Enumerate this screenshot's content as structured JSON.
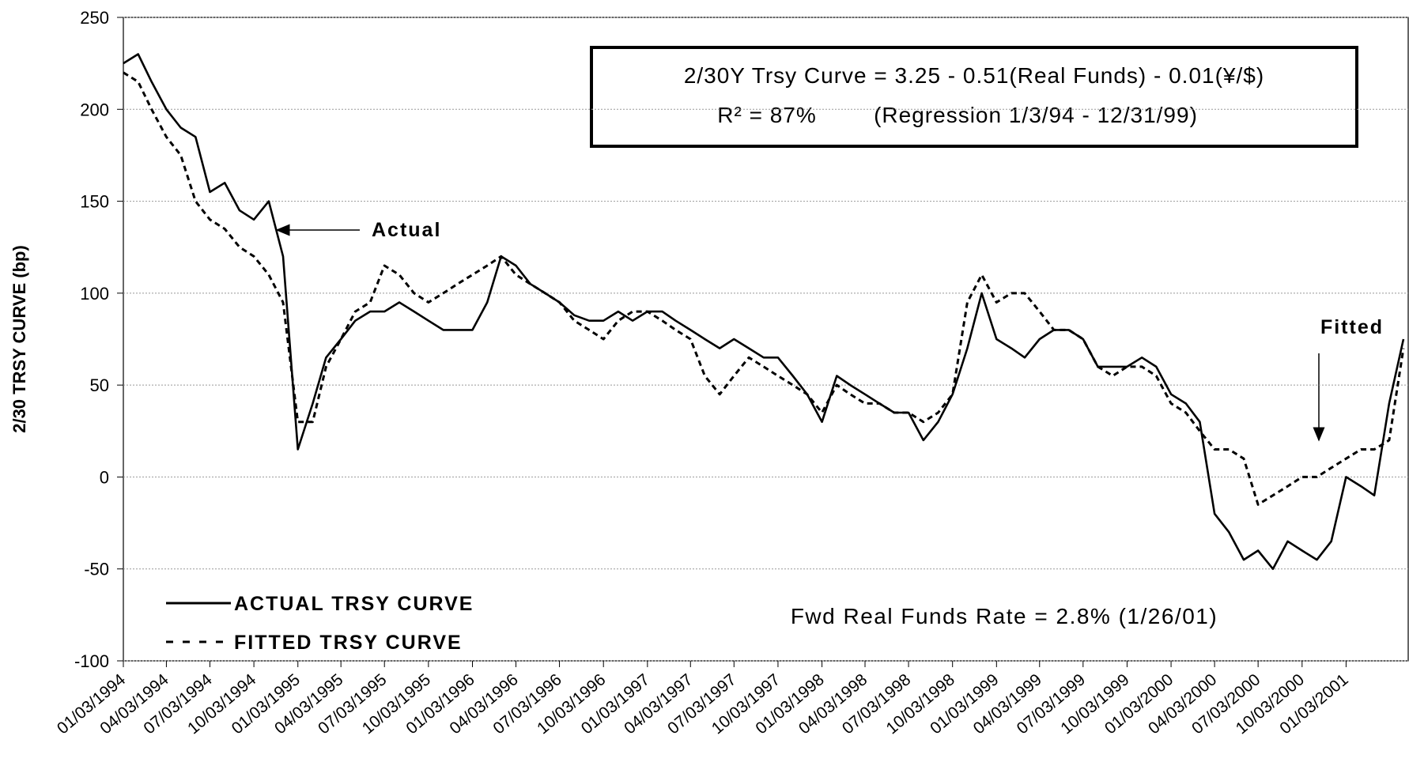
{
  "chart_data": {
    "type": "line",
    "ylabel": "2/30 TRSY CURVE (bp)",
    "ylim": [
      -100,
      250
    ],
    "yticks": [
      -100,
      -50,
      0,
      50,
      100,
      150,
      200,
      250
    ],
    "grid": true,
    "xlim": [
      "01/03/1994",
      "05/03/2001"
    ],
    "xticks": [
      "01/03/1994",
      "04/03/1994",
      "07/03/1994",
      "10/03/1994",
      "01/03/1995",
      "04/03/1995",
      "07/03/1995",
      "10/03/1995",
      "01/03/1996",
      "04/03/1996",
      "07/03/1996",
      "10/03/1996",
      "01/03/1997",
      "04/03/1997",
      "07/03/1997",
      "10/03/1997",
      "01/03/1998",
      "04/03/1998",
      "07/03/1998",
      "10/03/1998",
      "01/03/1999",
      "04/03/1999",
      "07/03/1999",
      "10/03/1999",
      "01/03/2000",
      "04/03/2000",
      "07/03/2000",
      "10/03/2000",
      "01/03/2001"
    ],
    "x": [
      "01/03/1994",
      "02/03/1994",
      "03/03/1994",
      "04/03/1994",
      "05/03/1994",
      "06/03/1994",
      "07/03/1994",
      "08/03/1994",
      "09/03/1994",
      "10/03/1994",
      "11/03/1994",
      "12/03/1994",
      "01/03/1995",
      "02/03/1995",
      "03/03/1995",
      "04/03/1995",
      "05/03/1995",
      "06/03/1995",
      "07/03/1995",
      "08/03/1995",
      "09/03/1995",
      "10/03/1995",
      "11/03/1995",
      "12/03/1995",
      "01/03/1996",
      "02/03/1996",
      "03/03/1996",
      "04/03/1996",
      "05/03/1996",
      "06/03/1996",
      "07/03/1996",
      "08/03/1996",
      "09/03/1996",
      "10/03/1996",
      "11/03/1996",
      "12/03/1996",
      "01/03/1997",
      "02/03/1997",
      "03/03/1997",
      "04/03/1997",
      "05/03/1997",
      "06/03/1997",
      "07/03/1997",
      "08/03/1997",
      "09/03/1997",
      "10/03/1997",
      "11/03/1997",
      "12/03/1997",
      "01/03/1998",
      "02/03/1998",
      "03/03/1998",
      "04/03/1998",
      "05/03/1998",
      "06/03/1998",
      "07/03/1998",
      "08/03/1998",
      "09/03/1998",
      "10/03/1998",
      "11/03/1998",
      "12/03/1998",
      "01/03/1999",
      "02/03/1999",
      "03/03/1999",
      "04/03/1999",
      "05/03/1999",
      "06/03/1999",
      "07/03/1999",
      "08/03/1999",
      "09/03/1999",
      "10/03/1999",
      "11/03/1999",
      "12/03/1999",
      "01/03/2000",
      "02/03/2000",
      "03/03/2000",
      "04/03/2000",
      "05/03/2000",
      "06/03/2000",
      "07/03/2000",
      "08/03/2000",
      "09/03/2000",
      "10/03/2000",
      "11/03/2000",
      "12/03/2000",
      "01/03/2001",
      "02/03/2001",
      "03/03/2001",
      "04/03/2001",
      "05/03/2001"
    ],
    "series": [
      {
        "name": "ACTUAL TRSY CURVE",
        "color": "#000000",
        "dash": false,
        "values": [
          225,
          230,
          215,
          200,
          190,
          185,
          155,
          160,
          145,
          140,
          150,
          120,
          15,
          40,
          65,
          75,
          85,
          90,
          90,
          95,
          90,
          85,
          80,
          80,
          80,
          95,
          120,
          115,
          105,
          100,
          95,
          88,
          85,
          85,
          90,
          85,
          90,
          90,
          85,
          80,
          75,
          70,
          75,
          70,
          65,
          65,
          55,
          45,
          30,
          55,
          50,
          45,
          40,
          35,
          35,
          20,
          30,
          45,
          70,
          100,
          75,
          70,
          65,
          75,
          80,
          80,
          75,
          60,
          60,
          60,
          65,
          60,
          45,
          40,
          30,
          -20,
          -30,
          -45,
          -40,
          -50,
          -35,
          -40,
          -45,
          -35,
          0,
          -5,
          -10,
          40,
          75
        ]
      },
      {
        "name": "FITTED TRSY CURVE",
        "color": "#000000",
        "dash": true,
        "values": [
          220,
          215,
          200,
          185,
          175,
          150,
          140,
          135,
          125,
          120,
          110,
          95,
          30,
          30,
          60,
          75,
          90,
          95,
          115,
          110,
          100,
          95,
          100,
          105,
          110,
          115,
          120,
          110,
          105,
          100,
          95,
          85,
          80,
          75,
          85,
          90,
          90,
          85,
          80,
          75,
          55,
          45,
          55,
          65,
          60,
          55,
          50,
          45,
          35,
          50,
          45,
          40,
          40,
          35,
          35,
          30,
          35,
          45,
          95,
          110,
          95,
          100,
          100,
          90,
          80,
          80,
          75,
          60,
          55,
          60,
          60,
          55,
          40,
          35,
          25,
          15,
          15,
          10,
          -15,
          -10,
          -5,
          0,
          0,
          5,
          10,
          15,
          15,
          20,
          70
        ]
      }
    ],
    "equation": "2/30Y Trsy Curve = 3.25 - 0.51(Real Funds) - 0.01(¥/$)",
    "r_squared": "R² = 87%",
    "regression": "(Regression 1/3/94 - 12/31/99)",
    "annotation_actual": "Actual",
    "annotation_fitted": "Fitted",
    "note": "Fwd Real Funds Rate = 2.8% (1/26/01)"
  }
}
